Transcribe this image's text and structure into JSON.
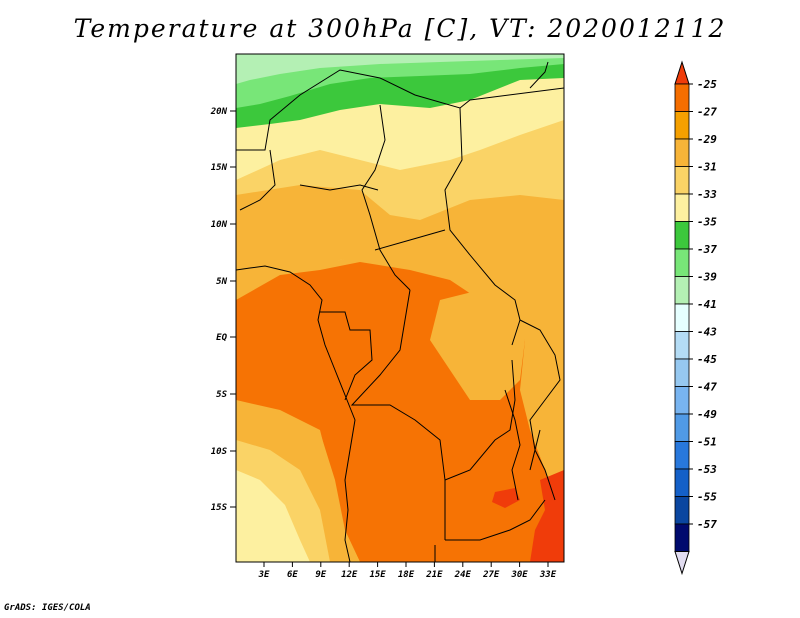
{
  "title": "Temperature at 300hPa [C], VT: 2020012112",
  "footer": "GrADS: IGES/COLA",
  "map": {
    "lat_ticks": [
      "20N",
      "15N",
      "10N",
      "5N",
      "EQ",
      "5S",
      "10S",
      "15S"
    ],
    "lon_ticks": [
      "3E",
      "6E",
      "9E",
      "12E",
      "15E",
      "18E",
      "21E",
      "24E",
      "27E",
      "30E",
      "33E"
    ]
  },
  "colorbar": {
    "labels": [
      "-25",
      "-27",
      "-29",
      "-31",
      "-33",
      "-35",
      "-37",
      "-39",
      "-41",
      "-43",
      "-45",
      "-47",
      "-49",
      "-51",
      "-53",
      "-55",
      "-57"
    ],
    "colors": [
      "#f03c0a",
      "#f56e00",
      "#f5a000",
      "#f7b438",
      "#fad366",
      "#fdf0a0",
      "#3cc83c",
      "#78e678",
      "#b4f0b4",
      "#e6ffff",
      "#b4dcf5",
      "#96c8f0",
      "#78b4f0",
      "#509ae6",
      "#2878dc",
      "#1460c8",
      "#0a46a0",
      "#000a6e",
      "#e1dcf0"
    ]
  }
}
